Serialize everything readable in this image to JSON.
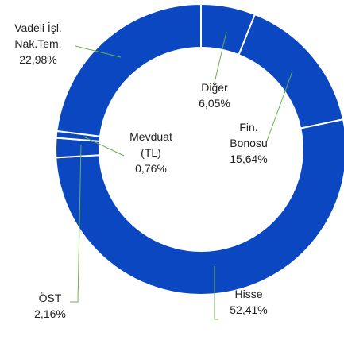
{
  "chart_data": {
    "type": "donut",
    "categories": [
      "Diğer",
      "Fin.\nBonosu",
      "Hisse",
      "ÖST",
      "Mevduat\n(TL)",
      "Vadeli İşl.\nNak.Tem."
    ],
    "values": [
      6.05,
      15.64,
      52.41,
      2.16,
      0.76,
      22.98
    ],
    "value_labels": [
      "6,05%",
      "15,64%",
      "52,41%",
      "2,16%",
      "0,76%",
      "22,98%"
    ],
    "color": "#0b47c1"
  }
}
